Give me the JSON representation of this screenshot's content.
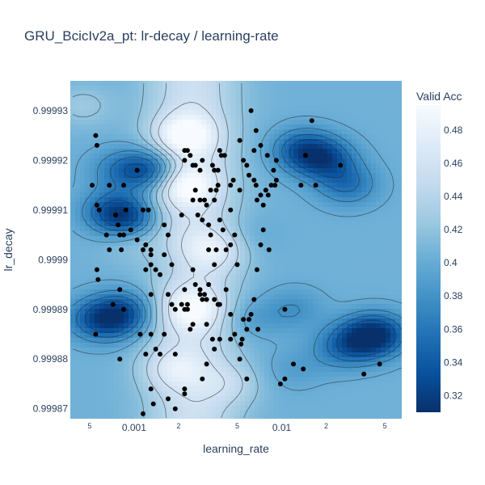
{
  "chart_data": {
    "type": "contour",
    "title": "GRU_BcicIv2a_pt: lr-decay / learning-rate",
    "xlabel": "learning_rate",
    "ylabel": "lr_decay",
    "x_scale": "log",
    "xlim": [
      0.00037,
      0.065
    ],
    "ylim": [
      0.999868,
      0.999936
    ],
    "x_tick_labels": [
      {
        "value": 0.0005,
        "label": "5"
      },
      {
        "value": 0.001,
        "label": "0.001"
      },
      {
        "value": 0.002,
        "label": "2"
      },
      {
        "value": 0.005,
        "label": "5"
      },
      {
        "value": 0.01,
        "label": "0.01"
      },
      {
        "value": 0.02,
        "label": "2"
      },
      {
        "value": 0.05,
        "label": "5"
      }
    ],
    "y_tick_labels": [
      {
        "value": 0.99987,
        "label": "0.99987"
      },
      {
        "value": 0.99988,
        "label": "0.99988"
      },
      {
        "value": 0.99989,
        "label": "0.99989"
      },
      {
        "value": 0.9999,
        "label": "0.9999"
      },
      {
        "value": 0.99991,
        "label": "0.99991"
      },
      {
        "value": 0.99992,
        "label": "0.99992"
      },
      {
        "value": 0.99993,
        "label": "0.99993"
      }
    ],
    "colorbar": {
      "title": "Valid Acc",
      "range": [
        0.31,
        0.495
      ],
      "tick_values": [
        0.32,
        0.34,
        0.36,
        0.38,
        0.4,
        0.42,
        0.44,
        0.46,
        0.48
      ],
      "tick_labels": [
        "0.32",
        "0.34",
        "0.36",
        "0.38",
        "0.4",
        "0.42",
        "0.44",
        "0.46",
        "0.48"
      ],
      "colorscale": [
        "#08306b",
        "#08519c",
        "#2171b5",
        "#4292c6",
        "#6baed6",
        "#9ecae1",
        "#c6dbef",
        "#deebf7",
        "#f7fbff"
      ]
    },
    "field_background": 0.405,
    "field_features": [
      {
        "lr": 0.0022,
        "decay": 0.999915,
        "value": 0.465
      },
      {
        "lr": 0.0022,
        "decay": 0.999925,
        "value": 0.47
      },
      {
        "lr": 0.0035,
        "decay": 0.999902,
        "value": 0.445
      },
      {
        "lr": 0.0025,
        "decay": 0.99989,
        "value": 0.455
      },
      {
        "lr": 0.0018,
        "decay": 0.999878,
        "value": 0.44
      },
      {
        "lr": 0.0009,
        "decay": 0.999905,
        "value": 0.43
      },
      {
        "lr": 0.00045,
        "decay": 0.999931,
        "value": 0.425
      },
      {
        "lr": 0.0008,
        "decay": 0.999918,
        "value": 0.37
      },
      {
        "lr": 0.0013,
        "decay": 0.999918,
        "value": 0.33
      },
      {
        "lr": 0.0007,
        "decay": 0.99991,
        "value": 0.36
      },
      {
        "lr": 0.0009,
        "decay": 0.999908,
        "value": 0.33
      },
      {
        "lr": 0.0007,
        "decay": 0.999888,
        "value": 0.34
      },
      {
        "lr": 0.0009,
        "decay": 0.99989,
        "value": 0.365
      },
      {
        "lr": 0.0005,
        "decay": 0.999888,
        "value": 0.375
      },
      {
        "lr": 0.02,
        "decay": 0.99992,
        "value": 0.345
      },
      {
        "lr": 0.014,
        "decay": 0.999922,
        "value": 0.34
      },
      {
        "lr": 0.028,
        "decay": 0.999915,
        "value": 0.36
      },
      {
        "lr": 0.035,
        "decay": 0.999884,
        "value": 0.355
      },
      {
        "lr": 0.045,
        "decay": 0.999885,
        "value": 0.335
      },
      {
        "lr": 0.025,
        "decay": 0.999882,
        "value": 0.37
      },
      {
        "lr": 0.012,
        "decay": 0.99989,
        "value": 0.38
      },
      {
        "lr": 0.012,
        "decay": 0.999878,
        "value": 0.39
      },
      {
        "lr": 0.006,
        "decay": 0.999905,
        "value": 0.395
      },
      {
        "lr": 0.006,
        "decay": 0.999888,
        "value": 0.385
      },
      {
        "lr": 0.0018,
        "decay": 0.999899,
        "value": 0.395
      },
      {
        "lr": 0.0045,
        "decay": 0.999875,
        "value": 0.43
      }
    ],
    "points": [
      [
        0.00055,
        0.999925
      ],
      [
        0.00056,
        0.999923
      ],
      [
        0.00052,
        0.999915
      ],
      [
        0.00068,
        0.999915
      ],
      [
        0.00085,
        0.999915
      ],
      [
        0.00105,
        0.999918
      ],
      [
        0.00056,
        0.999911
      ],
      [
        0.00058,
        0.99991
      ],
      [
        0.00075,
        0.999909
      ],
      [
        0.00078,
        0.999907
      ],
      [
        0.00088,
        0.99991
      ],
      [
        0.00095,
        0.999906
      ],
      [
        0.00065,
        0.999905
      ],
      [
        0.0008,
        0.999905
      ],
      [
        0.00085,
        0.999905
      ],
      [
        0.00068,
        0.999902
      ],
      [
        0.00082,
        0.999902
      ],
      [
        0.00115,
        0.99991
      ],
      [
        0.00125,
        0.99991
      ],
      [
        0.00105,
        0.999904
      ],
      [
        0.00115,
        0.999902
      ],
      [
        0.0013,
        0.999901
      ],
      [
        0.0013,
        0.999899
      ],
      [
        0.0014,
        0.999898
      ],
      [
        0.0012,
        0.999898
      ],
      [
        0.00056,
        0.999898
      ],
      [
        0.00057,
        0.999896
      ],
      [
        0.00072,
        0.999891
      ],
      [
        0.0015,
        0.999897
      ],
      [
        0.0013,
        0.999893
      ],
      [
        0.0018,
        0.999899
      ],
      [
        0.0017,
        0.999893
      ],
      [
        0.0018,
        0.999891
      ],
      [
        0.0019,
        0.99989
      ],
      [
        0.0021,
        0.999891
      ],
      [
        0.0022,
        0.99989
      ],
      [
        0.0023,
        0.99989
      ],
      [
        0.0022,
        0.999894
      ],
      [
        0.0025,
        0.999898
      ],
      [
        0.0026,
        0.999895
      ],
      [
        0.0028,
        0.999893
      ],
      [
        0.0029,
        0.999892
      ],
      [
        0.003,
        0.999893
      ],
      [
        0.0031,
        0.999892
      ],
      [
        0.0032,
        0.999895
      ],
      [
        0.0035,
        0.999892
      ],
      [
        0.0037,
        0.999891
      ],
      [
        0.0035,
        0.999899
      ],
      [
        0.0038,
        0.999891
      ],
      [
        0.0042,
        0.999894
      ],
      [
        0.0045,
        0.999889
      ],
      [
        0.005,
        0.999899
      ],
      [
        0.0028,
        0.999894
      ],
      [
        0.0025,
        0.999887
      ],
      [
        0.0031,
        0.999887
      ],
      [
        0.0034,
        0.999884
      ],
      [
        0.0035,
        0.999882
      ],
      [
        0.0038,
        0.999884
      ],
      [
        0.0045,
        0.999884
      ],
      [
        0.0048,
        0.999885
      ],
      [
        0.0055,
        0.999888
      ],
      [
        0.006,
        0.999888
      ],
      [
        0.0053,
        0.999883
      ],
      [
        0.0023,
        0.999891
      ],
      [
        0.0033,
        0.999905
      ],
      [
        0.0032,
        0.999902
      ],
      [
        0.0029,
        0.999908
      ],
      [
        0.0027,
        0.999909
      ],
      [
        0.0025,
        0.999912
      ],
      [
        0.0026,
        0.999914
      ],
      [
        0.0028,
        0.999912
      ],
      [
        0.003,
        0.999912
      ],
      [
        0.0031,
        0.999911
      ],
      [
        0.0032,
        0.999907
      ],
      [
        0.0033,
        0.999914
      ],
      [
        0.0035,
        0.999912
      ],
      [
        0.0037,
        0.999915
      ],
      [
        0.0037,
        0.999918
      ],
      [
        0.0038,
        0.999922
      ],
      [
        0.0039,
        0.999921
      ],
      [
        0.0041,
        0.999921
      ],
      [
        0.0022,
        0.999922
      ],
      [
        0.0023,
        0.999922
      ],
      [
        0.0024,
        0.999921
      ],
      [
        0.0025,
        0.999919
      ],
      [
        0.0026,
        0.999919
      ],
      [
        0.0028,
        0.999918
      ],
      [
        0.0029,
        0.99992
      ],
      [
        0.0022,
        0.99992
      ],
      [
        0.0034,
        0.999919
      ],
      [
        0.0035,
        0.999918
      ],
      [
        0.0036,
        0.999914
      ],
      [
        0.0045,
        0.999915
      ],
      [
        0.0047,
        0.999916
      ],
      [
        0.0052,
        0.999924
      ],
      [
        0.0058,
        0.999919
      ],
      [
        0.006,
        0.999917
      ],
      [
        0.0065,
        0.999916
      ],
      [
        0.0067,
        0.999915
      ],
      [
        0.0068,
        0.999912
      ],
      [
        0.0072,
        0.999913
      ],
      [
        0.0075,
        0.999911
      ],
      [
        0.0078,
        0.999914
      ],
      [
        0.0081,
        0.999913
      ],
      [
        0.0085,
        0.999915
      ],
      [
        0.0088,
        0.999918
      ],
      [
        0.0092,
        0.999916
      ],
      [
        0.0062,
        0.99993
      ],
      [
        0.0067,
        0.999926
      ],
      [
        0.0072,
        0.999923
      ],
      [
        0.008,
        0.999921
      ],
      [
        0.0055,
        0.99992
      ],
      [
        0.0065,
        0.999922
      ],
      [
        0.0045,
        0.99991
      ],
      [
        0.0048,
        0.999905
      ],
      [
        0.0045,
        0.999903
      ],
      [
        0.0042,
        0.999902
      ],
      [
        0.004,
        0.999906
      ],
      [
        0.0038,
        0.999908
      ],
      [
        0.0036,
        0.999902
      ],
      [
        0.0052,
        0.999914
      ],
      [
        0.0075,
        0.999906
      ],
      [
        0.0072,
        0.999903
      ],
      [
        0.0068,
        0.999898
      ],
      [
        0.0065,
        0.999892
      ],
      [
        0.0062,
        0.999889
      ],
      [
        0.0058,
        0.999886
      ],
      [
        0.0054,
        0.999884
      ],
      [
        0.0069,
        0.999886
      ],
      [
        0.0082,
        0.999902
      ],
      [
        0.009,
        0.999915
      ],
      [
        0.0092,
        0.99992
      ],
      [
        0.016,
        0.999928
      ],
      [
        0.017,
        0.999915
      ],
      [
        0.025,
        0.999919
      ],
      [
        0.0145,
        0.999921
      ],
      [
        0.0135,
        0.999915
      ],
      [
        0.0105,
        0.99989
      ],
      [
        0.012,
        0.999879
      ],
      [
        0.046,
        0.999879
      ],
      [
        0.036,
        0.999877
      ],
      [
        0.014,
        0.999878
      ],
      [
        0.0105,
        0.999876
      ],
      [
        0.0098,
        0.999875
      ],
      [
        0.0058,
        0.999876
      ],
      [
        0.0052,
        0.99988
      ],
      [
        0.0029,
        0.999876
      ],
      [
        0.0031,
        0.999879
      ],
      [
        0.0022,
        0.999873
      ],
      [
        0.0022,
        0.999874
      ],
      [
        0.0019,
        0.99987
      ],
      [
        0.0017,
        0.999872
      ],
      [
        0.00135,
        0.999871
      ],
      [
        0.00115,
        0.999869
      ],
      [
        0.0013,
        0.999874
      ],
      [
        0.0008,
        0.99988
      ],
      [
        0.0012,
        0.999881
      ],
      [
        0.0014,
        0.999882
      ],
      [
        0.0015,
        0.999881
      ],
      [
        0.0011,
        0.999885
      ],
      [
        0.0013,
        0.999885
      ],
      [
        0.0016,
        0.999885
      ],
      [
        0.0019,
        0.999881
      ],
      [
        0.0024,
        0.999886
      ],
      [
        0.0017,
        0.999905
      ],
      [
        0.0016,
        0.999907
      ],
      [
        0.0021,
        0.999909
      ],
      [
        0.0016,
        0.999901
      ],
      [
        0.0013,
        0.999902
      ],
      [
        0.0012,
        0.999903
      ],
      [
        0.0008,
        0.999894
      ],
      [
        0.00085,
        0.99989
      ],
      [
        0.00055,
        0.999885
      ]
    ]
  }
}
